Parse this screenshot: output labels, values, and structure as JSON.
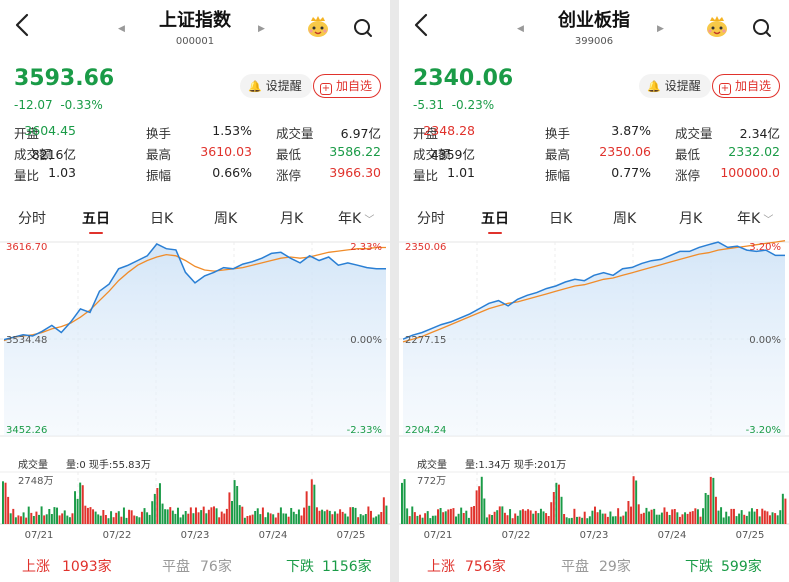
{
  "panels": [
    {
      "title": "上证指数",
      "code": "000001",
      "price": "3593.66",
      "change_abs": "-12.07",
      "change_pct": "-0.33%",
      "alert_label": "设提醒",
      "fav_label": "加自选",
      "stats": [
        [
          {
            "l": "开盘",
            "v": "3604.45",
            "c": "green"
          },
          {
            "l": "换手",
            "v": "1.53%",
            "c": "dark"
          },
          {
            "l": "成交量",
            "v": "6.97亿",
            "c": "dark"
          }
        ],
        [
          {
            "l": "成交额",
            "v": "8216亿",
            "c": "dark"
          },
          {
            "l": "最高",
            "v": "3610.03",
            "c": "red"
          },
          {
            "l": "最低",
            "v": "3586.22",
            "c": "green"
          }
        ],
        [
          {
            "l": "量比",
            "v": "1.03",
            "c": "dark"
          },
          {
            "l": "振幅",
            "v": "0.66%",
            "c": "dark"
          },
          {
            "l": "涨停",
            "v": "3966.30",
            "c": "red"
          }
        ]
      ],
      "tabs": [
        "分时",
        "五日",
        "日K",
        "周K",
        "月K",
        "年K"
      ],
      "active_tab": 1,
      "y_top": "3616.70",
      "y_mid": "3534.48",
      "y_bot": "3452.26",
      "pct_top": "2.33%",
      "pct_mid": "0.00%",
      "pct_bot": "-2.33%",
      "vol_label": "成交量",
      "vol_info": "量:0 现手:55.83万",
      "vol_max": "2748万",
      "dates": [
        "07/21",
        "07/22",
        "07/23",
        "07/24",
        "07/25"
      ],
      "up_label": "上涨",
      "up_count": "1093家",
      "flat_label": "平盘",
      "flat_count": "76家",
      "down_label": "下跌",
      "down_count": "1156家"
    },
    {
      "title": "创业板指",
      "code": "399006",
      "price": "2340.06",
      "change_abs": "-5.31",
      "change_pct": "-0.23%",
      "alert_label": "设提醒",
      "fav_label": "加自选",
      "stats": [
        [
          {
            "l": "开盘",
            "v": "2348.28",
            "c": "red"
          },
          {
            "l": "换手",
            "v": "3.87%",
            "c": "dark"
          },
          {
            "l": "成交量",
            "v": "2.34亿",
            "c": "dark"
          }
        ],
        [
          {
            "l": "成交额",
            "v": "4359亿",
            "c": "dark"
          },
          {
            "l": "最高",
            "v": "2350.06",
            "c": "red"
          },
          {
            "l": "最低",
            "v": "2332.02",
            "c": "green"
          }
        ],
        [
          {
            "l": "量比",
            "v": "1.01",
            "c": "dark"
          },
          {
            "l": "振幅",
            "v": "0.77%",
            "c": "dark"
          },
          {
            "l": "涨停",
            "v": "100000.0",
            "c": "red"
          }
        ]
      ],
      "tabs": [
        "分时",
        "五日",
        "日K",
        "周K",
        "月K",
        "年K"
      ],
      "active_tab": 1,
      "y_top": "2350.06",
      "y_mid": "2277.15",
      "y_bot": "2204.24",
      "pct_top": "3.20%",
      "pct_mid": "0.00%",
      "pct_bot": "-3.20%",
      "vol_label": "成交量",
      "vol_info": "量:1.34万 现手:201万",
      "vol_max": "772万",
      "dates": [
        "07/21",
        "07/22",
        "07/23",
        "07/24",
        "07/25"
      ],
      "up_label": "上涨",
      "up_count": "756家",
      "flat_label": "平盘",
      "flat_count": "29家",
      "down_label": "下跌",
      "down_count": "599家"
    }
  ],
  "chart_data": [
    {
      "type": "line",
      "x": [
        0,
        1,
        2,
        3,
        4,
        5,
        6,
        7,
        8,
        9,
        10,
        11,
        12,
        13,
        14,
        15,
        16,
        17,
        18,
        19,
        20,
        21,
        22,
        23,
        24,
        25,
        26,
        27,
        28,
        29,
        30,
        31,
        32,
        33,
        34,
        35,
        36,
        37,
        38,
        39,
        40
      ],
      "series": [
        {
          "values": [
            3534,
            3536,
            3538,
            3537,
            3541,
            3546,
            3540,
            3549,
            3560,
            3557,
            3575,
            3581,
            3594,
            3597,
            3601,
            3605,
            3615,
            3611,
            3610,
            3591,
            3582,
            3588,
            3591,
            3595,
            3594,
            3598,
            3600,
            3603,
            3607,
            3608,
            3603,
            3599,
            3605,
            3601,
            3604,
            3597,
            3599,
            3597,
            3595,
            3594,
            3594
          ],
          "color": "#2a7fd4"
        },
        {
          "values": [
            3533,
            3536,
            3537,
            3538,
            3540,
            3543,
            3545,
            3548,
            3553,
            3559,
            3567,
            3575,
            3584,
            3591,
            3597,
            3601,
            3604,
            3606,
            3605,
            3601,
            3596,
            3593,
            3592,
            3593,
            3594,
            3595,
            3597,
            3599,
            3601,
            3603,
            3604,
            3603,
            3604,
            3606,
            3608,
            3609,
            3610,
            3611,
            3611,
            3612,
            3612
          ],
          "color": "#f08c2a"
        }
      ],
      "ylim": [
        3452.26,
        3616.7
      ]
    },
    {
      "type": "line",
      "x": [
        0,
        1,
        2,
        3,
        4,
        5,
        6,
        7,
        8,
        9,
        10,
        11,
        12,
        13,
        14,
        15,
        16,
        17,
        18,
        19,
        20,
        21,
        22,
        23,
        24,
        25,
        26,
        27,
        28,
        29,
        30,
        31,
        32,
        33,
        34,
        35,
        36,
        37,
        38,
        39,
        40
      ],
      "series": [
        {
          "values": [
            2277,
            2280,
            2282,
            2285,
            2288,
            2290,
            2293,
            2296,
            2300,
            2304,
            2306,
            2302,
            2307,
            2310,
            2312,
            2315,
            2317,
            2320,
            2322,
            2321,
            2325,
            2327,
            2325,
            2330,
            2331,
            2334,
            2336,
            2337,
            2340,
            2343,
            2343,
            2346,
            2348,
            2350,
            2346,
            2347,
            2344,
            2343,
            2344,
            2340,
            2340
          ],
          "color": "#2a7fd4"
        },
        {
          "values": [
            2275,
            2277,
            2279,
            2282,
            2285,
            2288,
            2291,
            2294,
            2297,
            2300,
            2302,
            2304,
            2305,
            2307,
            2309,
            2311,
            2313,
            2315,
            2317,
            2318,
            2320,
            2322,
            2323,
            2325,
            2327,
            2329,
            2331,
            2333,
            2335,
            2337,
            2339,
            2341,
            2342,
            2344,
            2345,
            2346,
            2347,
            2348,
            2349,
            2350,
            2351
          ],
          "color": "#f08c2a"
        }
      ],
      "ylim": [
        2204.24,
        2350.06
      ]
    }
  ]
}
